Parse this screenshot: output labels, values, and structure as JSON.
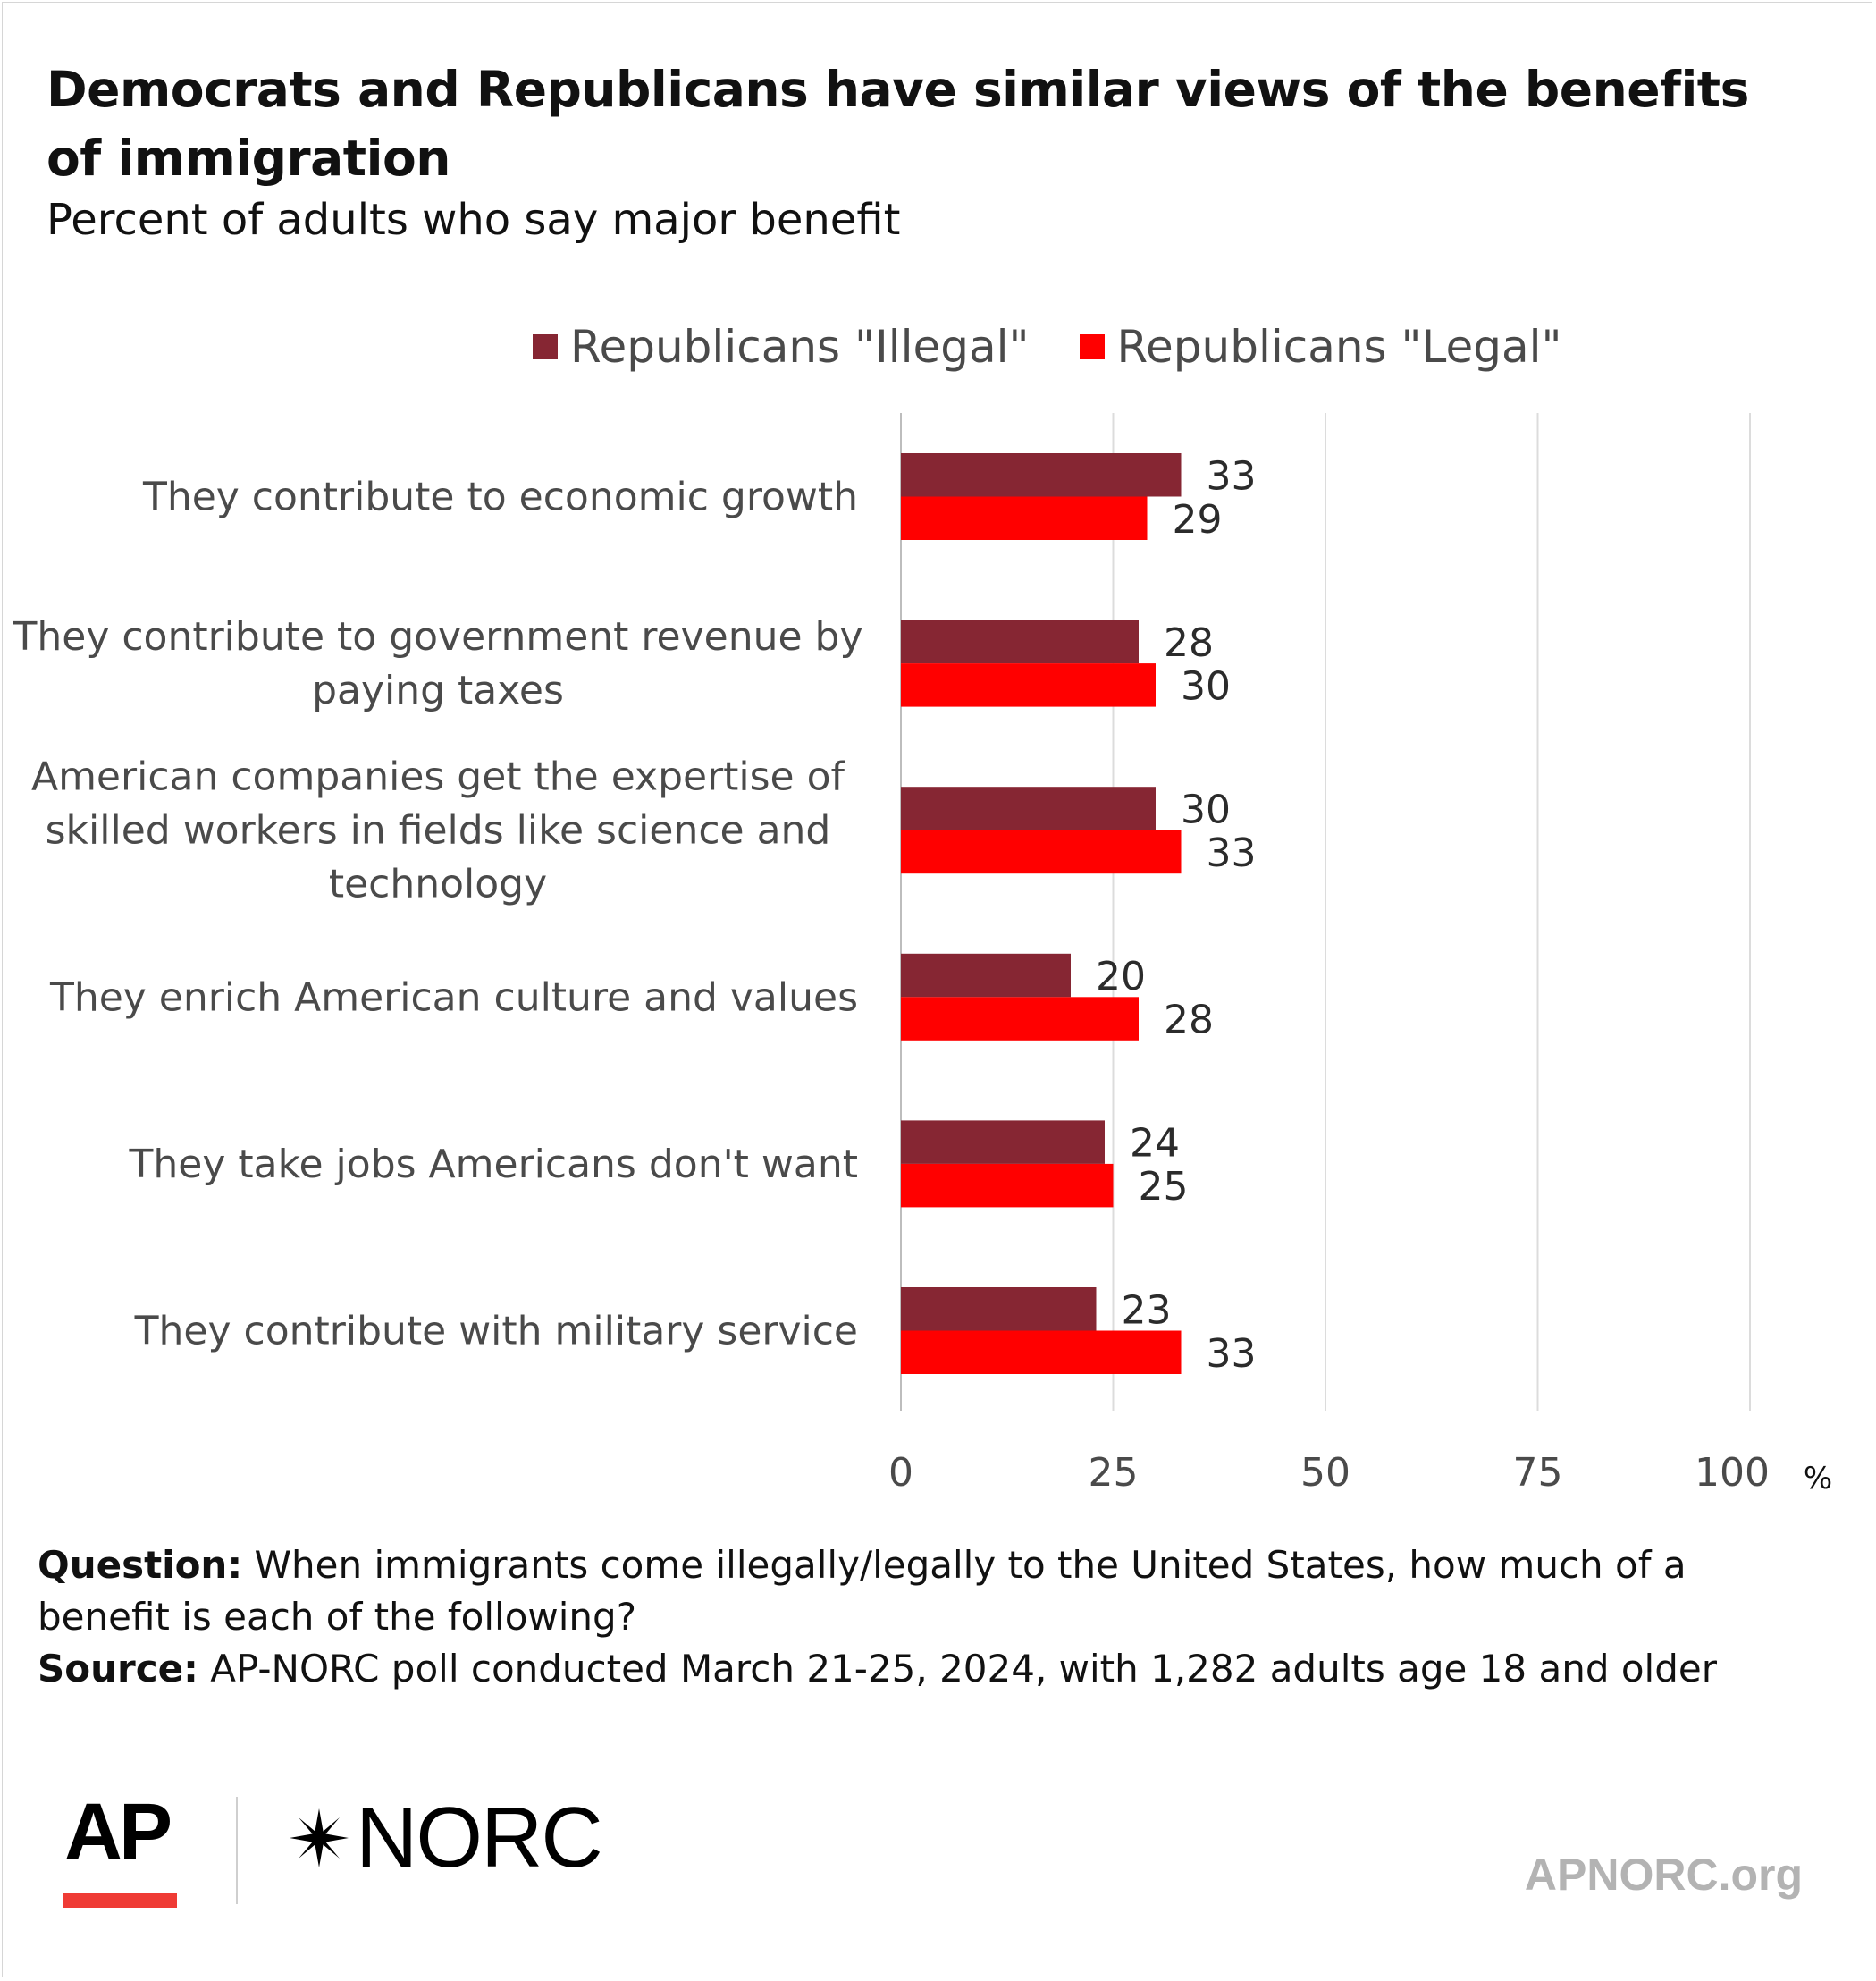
{
  "chart_data": {
    "type": "bar",
    "orientation": "horizontal",
    "title": "Democrats and Republicans have similar views of the benefits of immigration",
    "subtitle": "Percent of adults who say major benefit",
    "categories": [
      "They contribute to economic growth",
      "They contribute to government revenue by paying taxes",
      "American companies get the expertise of skilled workers in fields like science and technology",
      "They enrich American culture and values",
      "They take jobs Americans don't want",
      "They contribute with military service"
    ],
    "category_lines": [
      [
        "They contribute to economic growth"
      ],
      [
        "They contribute to government revenue by",
        "paying taxes"
      ],
      [
        "American companies get the expertise of",
        "skilled workers in fields like science and",
        "technology"
      ],
      [
        "They enrich American culture and values"
      ],
      [
        "They take jobs Americans don't want"
      ],
      [
        "They contribute with military service"
      ]
    ],
    "series": [
      {
        "name": "Republicans \"Illegal\"",
        "color": "#862633",
        "values": [
          33,
          28,
          30,
          20,
          24,
          23
        ]
      },
      {
        "name": "Republicans \"Legal\"",
        "color": "#ff0000",
        "values": [
          29,
          30,
          33,
          28,
          25,
          33
        ]
      }
    ],
    "xlim": [
      0,
      100
    ],
    "xticks": [
      "0",
      "25",
      "50",
      "75",
      "100"
    ],
    "x_unit": "%",
    "grid": true,
    "legend_position": "top",
    "data_labels": true
  },
  "notes": {
    "question_label": "Question:",
    "question_text": "When immigrants come illegally/legally to the United States, how much of a benefit is each of the following?",
    "source_label": "Source:",
    "source_text": "AP-NORC poll conducted March 21-25, 2024, with 1,282 adults age 18 and older"
  },
  "branding": {
    "ap_logo": "AP",
    "norc_logo": "NORC",
    "norc_icon": "star-icon",
    "site": "APNORC.org",
    "ap_accent_color": "#ef3b35"
  }
}
